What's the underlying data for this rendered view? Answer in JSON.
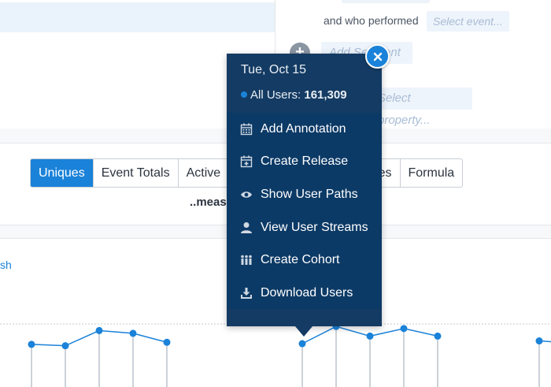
{
  "segment": {
    "and_who_performed": "and who performed",
    "select_event_placeholder": "Select event...",
    "add_segment_label": "Add Segment",
    "select_property_placeholder": "Select property..."
  },
  "metric_tabs": [
    {
      "label": "Uniques",
      "active": true
    },
    {
      "label": "Event Totals",
      "active": false
    },
    {
      "label": "Active",
      "active": false
    },
    {
      "label": "Properties",
      "active": false
    },
    {
      "label": "Formula",
      "active": false
    }
  ],
  "measures_label": "..meas",
  "left_link_fragment": "sh",
  "popup": {
    "date": "Tue, Oct 15",
    "series_label": "All Users:",
    "series_value": "161,309",
    "close_icon": "close-icon",
    "menu": [
      {
        "label": "Add Annotation",
        "icon": "calendar-icon"
      },
      {
        "label": "Create Release",
        "icon": "calendar-plus-icon"
      },
      {
        "label": "Show User Paths",
        "icon": "eye-icon"
      },
      {
        "label": "View User Streams",
        "icon": "user-icon"
      },
      {
        "label": "Create Cohort",
        "icon": "group-icon"
      },
      {
        "label": "Download Users",
        "icon": "download-icon"
      }
    ]
  },
  "colors": {
    "accent": "#1a82d9",
    "popup_bg": "#0c3a66",
    "popup_header": "#143b63"
  },
  "chart_data": {
    "type": "line",
    "series": [
      {
        "values": [
          62,
          60,
          82,
          78,
          65,
          null,
          null,
          null,
          63,
          88,
          74,
          85,
          74,
          null,
          null,
          67,
          64
        ]
      }
    ],
    "x": [
      1,
      2,
      3,
      4,
      5,
      6,
      7,
      8,
      9,
      10,
      11,
      12,
      13,
      14,
      15,
      16,
      17
    ],
    "ylim": [
      0,
      110
    ],
    "grid": true
  }
}
